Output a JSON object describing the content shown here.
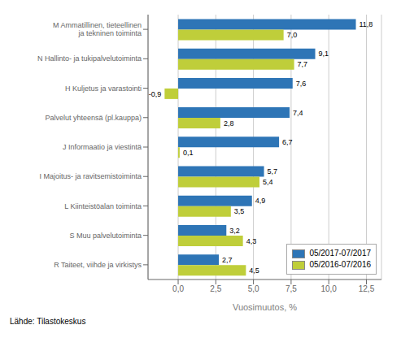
{
  "chart_data": {
    "type": "bar",
    "orientation": "horizontal",
    "categories": [
      "M Ammatillinen, tieteellinen\n ja tekninen toiminta",
      "N Hallinto- ja tukipalvelutoiminta",
      "H Kuljetus ja varastointi",
      "Palvelut yhteensä (pl.kauppa)",
      "J Informaatio ja viestintä",
      "I Majoitus- ja ravitsemistoiminta",
      "L Kiinteistöalan toiminta",
      "S Muu palvelutoiminta",
      "R Taiteet, viihde ja virkistys"
    ],
    "series": [
      {
        "name": "05/2017-07/2017",
        "color": "#2E75B6",
        "values": [
          11.8,
          9.1,
          7.6,
          7.4,
          6.7,
          5.7,
          4.9,
          3.2,
          2.7
        ],
        "value_labels": [
          "11,8",
          "9,1",
          "7,6",
          "7,4",
          "6,7",
          "5,7",
          "4,9",
          "3,2",
          "2,7"
        ]
      },
      {
        "name": "05/2016-07/2016",
        "color": "#BFCE3A",
        "values": [
          7.0,
          7.7,
          -0.9,
          2.8,
          0.1,
          5.4,
          3.5,
          4.3,
          4.5
        ],
        "value_labels": [
          "7,0",
          "7,7",
          "-0,9",
          "2,8",
          "0,1",
          "5,4",
          "3,5",
          "4,3",
          "4,5"
        ]
      }
    ],
    "xlabel": "Vuosimuutos, %",
    "xlim": [
      -2.0,
      13.5
    ],
    "xticks": [
      {
        "value": 0.0,
        "label": "0,0"
      },
      {
        "value": 2.5,
        "label": "2,5"
      },
      {
        "value": 5.0,
        "label": "5,0"
      },
      {
        "value": 7.5,
        "label": "7,5"
      },
      {
        "value": 10.0,
        "label": "10,0"
      },
      {
        "value": 12.5,
        "label": "12,5"
      }
    ],
    "grid": true,
    "legend": "lower right",
    "data_labels": true,
    "footnote": "Lähde: Tilastokeskus"
  }
}
